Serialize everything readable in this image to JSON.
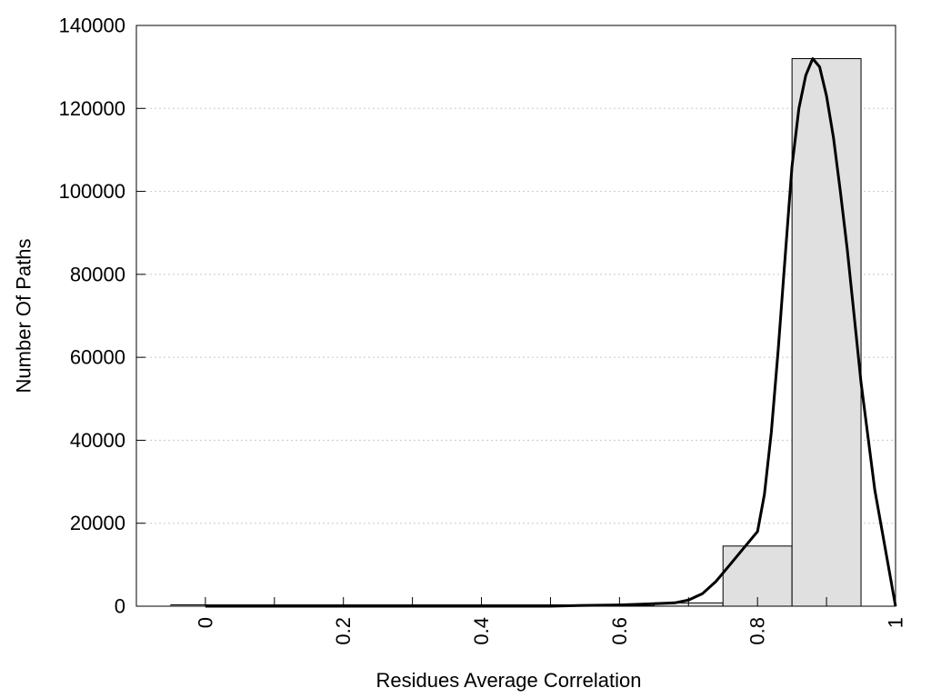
{
  "chart_data": {
    "type": "bar",
    "title": "",
    "xlabel": "Residues Average Correlation",
    "ylabel": "Number Of Paths",
    "xlim": [
      -0.1,
      1.0
    ],
    "ylim": [
      0,
      140000
    ],
    "x_ticks": [
      0,
      0.1,
      0.2,
      0.3,
      0.4,
      0.5,
      0.6,
      0.7,
      0.8,
      0.9,
      1.0
    ],
    "x_tick_labels": [
      {
        "value": 0,
        "label": "0"
      },
      {
        "value": 0.2,
        "label": "0.2"
      },
      {
        "value": 0.4,
        "label": "0.4"
      },
      {
        "value": 0.6,
        "label": "0.6"
      },
      {
        "value": 0.8,
        "label": "0.8"
      },
      {
        "value": 1.0,
        "label": "1"
      }
    ],
    "y_ticks": [
      0,
      20000,
      40000,
      60000,
      80000,
      100000,
      120000,
      140000
    ],
    "y_tick_labels": [
      "0",
      "20000",
      "40000",
      "60000",
      "80000",
      "100000",
      "120000",
      "140000"
    ],
    "grid": "horizontal dotted",
    "bin_width": 0.1,
    "bars": [
      {
        "x": 0.0,
        "value": 0
      },
      {
        "x": 0.1,
        "value": 0
      },
      {
        "x": 0.2,
        "value": 0
      },
      {
        "x": 0.3,
        "value": 0
      },
      {
        "x": 0.4,
        "value": 0
      },
      {
        "x": 0.5,
        "value": 0
      },
      {
        "x": 0.6,
        "value": 100
      },
      {
        "x": 0.7,
        "value": 800
      },
      {
        "x": 0.8,
        "value": 14500
      },
      {
        "x": 0.9,
        "value": 132000
      }
    ],
    "fit_curve": {
      "x": [
        0.0,
        0.5,
        0.55,
        0.6,
        0.65,
        0.68,
        0.7,
        0.72,
        0.74,
        0.76,
        0.78,
        0.8,
        0.81,
        0.82,
        0.83,
        0.84,
        0.85,
        0.86,
        0.87,
        0.88,
        0.89,
        0.9,
        0.91,
        0.92,
        0.93,
        0.94,
        0.95,
        0.97,
        1.0
      ],
      "y": [
        0,
        0,
        200,
        300,
        600,
        800,
        1500,
        3000,
        6000,
        10000,
        14000,
        18000,
        27000,
        42000,
        62000,
        84000,
        106000,
        120000,
        128000,
        132000,
        130000,
        123000,
        113000,
        100000,
        86000,
        70000,
        54000,
        28000,
        0
      ]
    },
    "colors": {
      "bar_fill": "#e0e0e0",
      "bar_stroke": "#000000",
      "curve": "#000000",
      "grid": "#c8c8c8"
    }
  }
}
